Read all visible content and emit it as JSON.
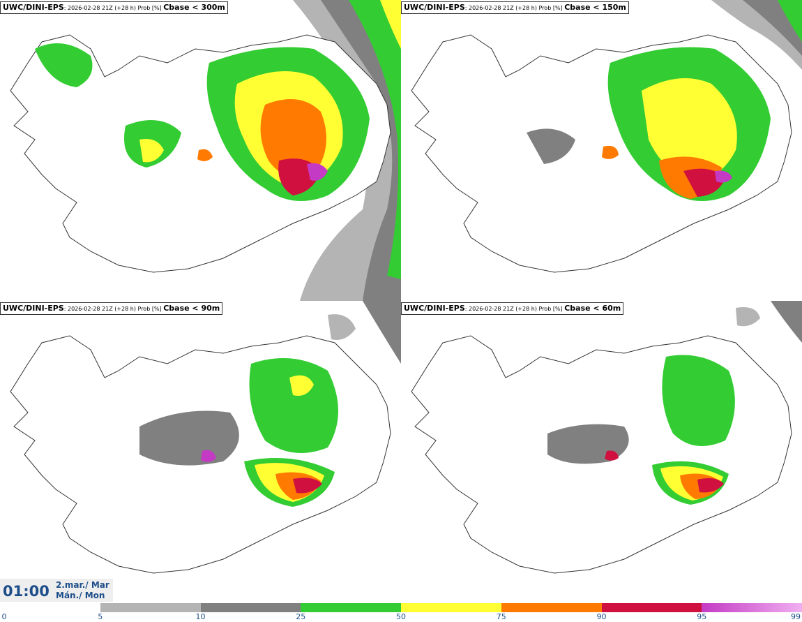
{
  "panels": [
    {
      "model": "UWC/DINI-EPS",
      "info": ": 2026-02-28 21Z (+28 h) Prob [%] ",
      "variable": "Cbase < 300m"
    },
    {
      "model": "UWC/DINI-EPS",
      "info": ": 2026-02-28 21Z (+28 h) Prob [%] ",
      "variable": "Cbase < 150m"
    },
    {
      "model": "UWC/DINI-EPS",
      "info": ": 2026-02-28 21Z (+28 h) Prob [%] ",
      "variable": "Cbase < 90m"
    },
    {
      "model": "UWC/DINI-EPS",
      "info": ": 2026-02-28 21Z (+28 h) Prob [%] ",
      "variable": "Cbase < 60m"
    }
  ],
  "valid_time": {
    "clock": "01:00",
    "date_line1": "2.mar./ Mar",
    "date_line2": "Mán./ Mon"
  },
  "colorbar": {
    "labels": [
      "0",
      "5",
      "10",
      "25",
      "50",
      "75",
      "90",
      "95",
      "99"
    ],
    "colors": [
      "#ffffff",
      "#b4b4b4",
      "#808080",
      "#33cc33",
      "#ffff33",
      "#ff7a00",
      "#d0103f",
      "#c43ac4",
      "#f0b0f0"
    ]
  },
  "palette": {
    "land_outline": "#333333",
    "accent": "#1d4e8a"
  }
}
